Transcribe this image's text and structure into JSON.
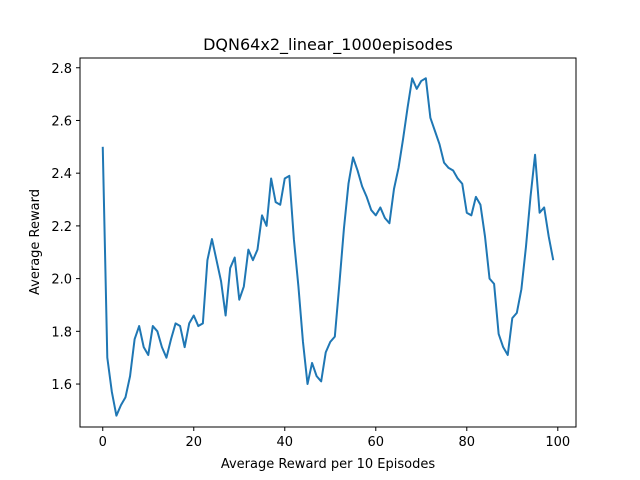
{
  "chart_data": {
    "type": "line",
    "title": "DQN64x2_linear_1000episodes",
    "xlabel": "Average Reward per 10 Episodes",
    "ylabel": "Average Reward",
    "xlim": [
      -5,
      104
    ],
    "ylim": [
      1.437,
      2.837
    ],
    "xticks": [
      0,
      20,
      40,
      60,
      80,
      100
    ],
    "yticks": [
      1.6,
      1.8,
      2.0,
      2.2,
      2.4,
      2.6,
      2.8
    ],
    "xtick_labels": [
      "0",
      "20",
      "40",
      "60",
      "80",
      "100"
    ],
    "ytick_labels": [
      "1.6",
      "1.8",
      "2.0",
      "2.2",
      "2.4",
      "2.6",
      "2.8"
    ],
    "grid": false,
    "series": [
      {
        "name": "Average Reward",
        "color": "#1f77b4",
        "x": [
          0,
          1,
          2,
          3,
          4,
          5,
          6,
          7,
          8,
          9,
          10,
          11,
          12,
          13,
          14,
          15,
          16,
          17,
          18,
          19,
          20,
          21,
          22,
          23,
          24,
          25,
          26,
          27,
          28,
          29,
          30,
          31,
          32,
          33,
          34,
          35,
          36,
          37,
          38,
          39,
          40,
          41,
          42,
          43,
          44,
          45,
          46,
          47,
          48,
          49,
          50,
          51,
          52,
          53,
          54,
          55,
          56,
          57,
          58,
          59,
          60,
          61,
          62,
          63,
          64,
          65,
          66,
          67,
          68,
          69,
          70,
          71,
          72,
          73,
          74,
          75,
          76,
          77,
          78,
          79,
          80,
          81,
          82,
          83,
          84,
          85,
          86,
          87,
          88,
          89,
          90,
          91,
          92,
          93,
          94,
          95,
          96,
          97,
          98,
          99
        ],
        "values": [
          2.5,
          1.7,
          1.57,
          1.48,
          1.52,
          1.55,
          1.63,
          1.77,
          1.82,
          1.74,
          1.71,
          1.82,
          1.8,
          1.74,
          1.7,
          1.77,
          1.83,
          1.82,
          1.74,
          1.83,
          1.86,
          1.82,
          1.83,
          2.07,
          2.15,
          2.07,
          1.99,
          1.86,
          2.04,
          2.08,
          1.92,
          1.97,
          2.11,
          2.07,
          2.11,
          2.24,
          2.2,
          2.38,
          2.29,
          2.28,
          2.38,
          2.39,
          2.15,
          1.97,
          1.76,
          1.6,
          1.68,
          1.63,
          1.61,
          1.72,
          1.76,
          1.78,
          1.98,
          2.19,
          2.36,
          2.46,
          2.41,
          2.35,
          2.31,
          2.26,
          2.24,
          2.27,
          2.23,
          2.21,
          2.34,
          2.42,
          2.53,
          2.65,
          2.76,
          2.72,
          2.75,
          2.76,
          2.61,
          2.56,
          2.51,
          2.44,
          2.42,
          2.41,
          2.38,
          2.36,
          2.25,
          2.24,
          2.31,
          2.28,
          2.16,
          2.0,
          1.98,
          1.79,
          1.74,
          1.71,
          1.85,
          1.87,
          1.96,
          2.12,
          2.31,
          2.47,
          2.25,
          2.27,
          2.16,
          2.07
        ]
      }
    ]
  }
}
